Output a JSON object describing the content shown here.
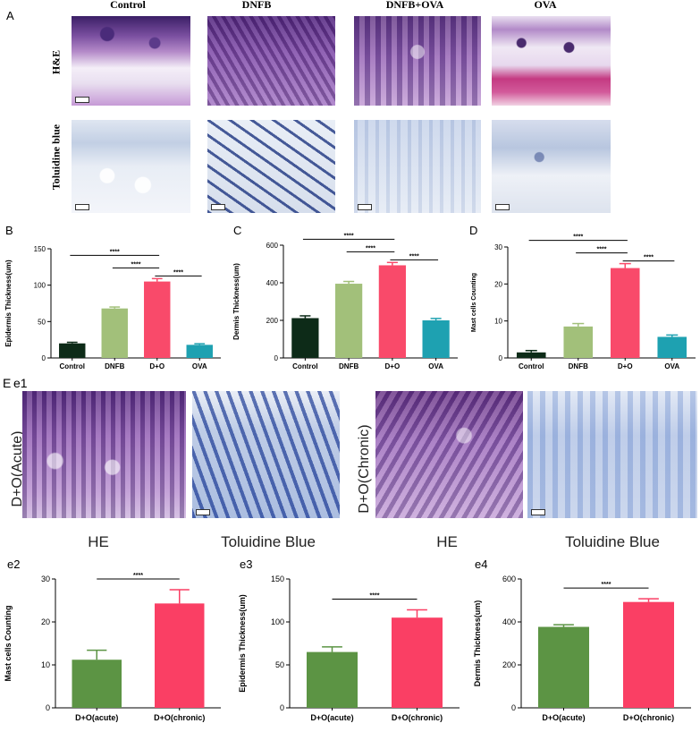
{
  "panel_a": {
    "letter": "A",
    "columns": [
      "Control",
      "DNFB",
      "DNFB+OVA",
      "OVA"
    ],
    "rows": [
      "H&E",
      "Toluidine blue"
    ]
  },
  "panel_e": {
    "letter": "E",
    "sub_letter": "e1",
    "left_group_label": "D+O(Acute)",
    "right_group_label": "D+O(Chronic)",
    "image_labels": [
      "HE",
      "Toluidine Blue",
      "HE",
      "Toluidine Blue"
    ]
  },
  "colors": {
    "control": "#0d2b18",
    "dnfb": "#a2c07a",
    "d_o": "#f94a6a",
    "ova": "#1ea1b1",
    "acute": "#5c9444",
    "chronic": "#fa3f64"
  },
  "significance": "****",
  "chart_data": [
    {
      "id": "B",
      "letter": "B",
      "type": "bar",
      "categories": [
        "Control",
        "DNFB",
        "D+O",
        "OVA"
      ],
      "values": [
        20,
        68,
        105,
        18
      ],
      "errors": [
        1.5,
        2,
        4,
        1.5
      ],
      "ylabel": "Epidermis Thickness(um)",
      "ylim": [
        0,
        150
      ],
      "yticks": [
        0,
        50,
        100,
        150
      ],
      "brackets": [
        [
          0,
          2
        ],
        [
          1,
          2
        ],
        [
          2,
          3
        ]
      ]
    },
    {
      "id": "C",
      "letter": "C",
      "type": "bar",
      "categories": [
        "Control",
        "DNFB",
        "D+O",
        "OVA"
      ],
      "values": [
        212,
        395,
        493,
        200
      ],
      "errors": [
        12,
        12,
        15,
        10
      ],
      "ylabel": "Dermis Thickness(um)",
      "ylim": [
        0,
        600
      ],
      "yticks": [
        0,
        200,
        400,
        600
      ],
      "brackets": [
        [
          0,
          2
        ],
        [
          1,
          2
        ],
        [
          2,
          3
        ]
      ]
    },
    {
      "id": "D",
      "letter": "D",
      "type": "bar",
      "categories": [
        "Control",
        "DNFB",
        "D+O",
        "OVA"
      ],
      "values": [
        1.5,
        8.5,
        24.3,
        5.7
      ],
      "errors": [
        0.5,
        0.8,
        1.2,
        0.5
      ],
      "ylabel": "Mast cells Counting",
      "ylim": [
        0,
        30
      ],
      "yticks": [
        0,
        10,
        20,
        30
      ],
      "brackets": [
        [
          0,
          2
        ],
        [
          1,
          2
        ],
        [
          2,
          3
        ]
      ]
    },
    {
      "id": "e2",
      "letter": "e2",
      "type": "bar",
      "categories": [
        "D+O(acute)",
        "D+O(chronic)"
      ],
      "values": [
        11.2,
        24.3
      ],
      "errors": [
        2.2,
        3.2
      ],
      "ylabel": "Mast cells Counting",
      "ylim": [
        0,
        30
      ],
      "yticks": [
        0,
        10,
        20,
        30
      ],
      "brackets": [
        [
          0,
          1
        ]
      ]
    },
    {
      "id": "e3",
      "letter": "e3",
      "type": "bar",
      "categories": [
        "D+O(acute)",
        "D+O(chronic)"
      ],
      "values": [
        65,
        105
      ],
      "errors": [
        6,
        9
      ],
      "ylabel": "Epidermis Thickness(um)",
      "ylim": [
        0,
        150
      ],
      "yticks": [
        0,
        50,
        100,
        150
      ],
      "brackets": [
        [
          0,
          1
        ]
      ]
    },
    {
      "id": "e4",
      "letter": "e4",
      "type": "bar",
      "categories": [
        "D+O(acute)",
        "D+O(chronic)"
      ],
      "values": [
        377,
        493
      ],
      "errors": [
        10,
        15
      ],
      "ylabel": "Dermis Thickness(um)",
      "ylim": [
        0,
        600
      ],
      "yticks": [
        0,
        200,
        400,
        600
      ],
      "brackets": [
        [
          0,
          1
        ]
      ]
    }
  ]
}
